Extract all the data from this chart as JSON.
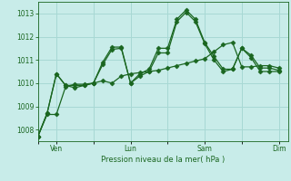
{
  "background_color": "#c8ece9",
  "grid_color": "#a8d8d4",
  "line_color": "#1a6620",
  "ylabel": "Pression niveau de la mer( hPa )",
  "ylim": [
    1007.5,
    1013.5
  ],
  "yticks": [
    1008,
    1009,
    1010,
    1011,
    1012,
    1013
  ],
  "xtick_labels": [
    "",
    "Ven",
    "",
    "Lun",
    "",
    "Sam",
    "",
    "Dim"
  ],
  "xtick_positions": [
    0,
    12,
    36,
    60,
    84,
    108,
    132,
    156
  ],
  "xlim": [
    0,
    162
  ],
  "series1_x": [
    0,
    6,
    12,
    18,
    24,
    30,
    36,
    42,
    48,
    54,
    60,
    66,
    72,
    78,
    84,
    90,
    96,
    102,
    108,
    114,
    120,
    126,
    132,
    138,
    144,
    150,
    156
  ],
  "series1_y": [
    1007.7,
    1008.65,
    1008.65,
    1009.85,
    1009.95,
    1009.95,
    1010.0,
    1010.1,
    1010.0,
    1010.3,
    1010.4,
    1010.45,
    1010.5,
    1010.55,
    1010.65,
    1010.75,
    1010.85,
    1010.95,
    1011.05,
    1011.35,
    1011.65,
    1011.75,
    1010.7,
    1010.7,
    1010.75,
    1010.75,
    1010.65
  ],
  "series2_x": [
    0,
    6,
    12,
    18,
    24,
    30,
    36,
    42,
    48,
    54,
    60,
    66,
    72,
    78,
    84,
    90,
    96,
    102,
    108,
    114,
    120,
    126,
    132,
    138,
    144,
    150,
    156
  ],
  "series2_y": [
    1007.7,
    1008.7,
    1010.4,
    1009.9,
    1009.9,
    1009.9,
    1010.0,
    1010.8,
    1011.45,
    1011.5,
    1010.0,
    1010.3,
    1010.5,
    1011.3,
    1011.3,
    1012.65,
    1013.05,
    1012.65,
    1011.7,
    1011.0,
    1010.5,
    1010.6,
    1011.5,
    1011.2,
    1010.65,
    1010.65,
    1010.55
  ],
  "series3_x": [
    0,
    6,
    12,
    18,
    24,
    30,
    36,
    42,
    48,
    54,
    60,
    66,
    72,
    78,
    84,
    90,
    96,
    102,
    108,
    114,
    120,
    126,
    132,
    138,
    144,
    150,
    156
  ],
  "series3_y": [
    1007.7,
    1008.7,
    1010.4,
    1009.9,
    1009.8,
    1009.9,
    1010.0,
    1010.9,
    1011.55,
    1011.55,
    1010.0,
    1010.4,
    1010.6,
    1011.5,
    1011.5,
    1012.75,
    1013.15,
    1012.75,
    1011.75,
    1011.15,
    1010.6,
    1010.6,
    1011.5,
    1011.1,
    1010.5,
    1010.5,
    1010.5
  ]
}
